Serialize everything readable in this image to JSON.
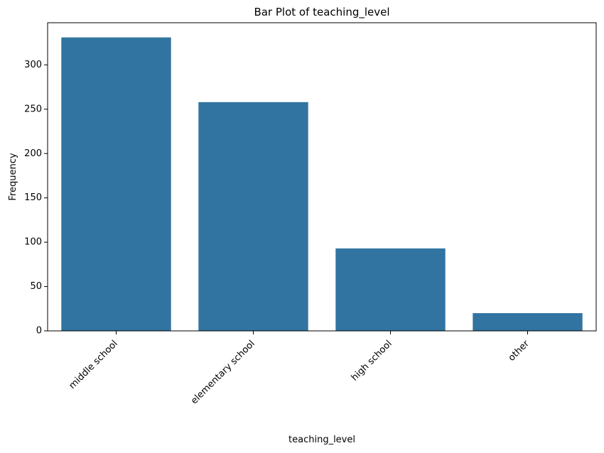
{
  "chart_data": {
    "type": "bar",
    "title": "Bar Plot of teaching_level",
    "xlabel": "teaching_level",
    "ylabel": "Frequency",
    "categories": [
      "middle school",
      "elementary school",
      "high school",
      "other"
    ],
    "values": [
      331,
      258,
      93,
      20
    ],
    "yticks": [
      0,
      50,
      100,
      150,
      200,
      250,
      300
    ],
    "ylim": [
      0,
      347.55
    ],
    "grid": false,
    "legend": false,
    "bar_color": "#3274a1"
  }
}
